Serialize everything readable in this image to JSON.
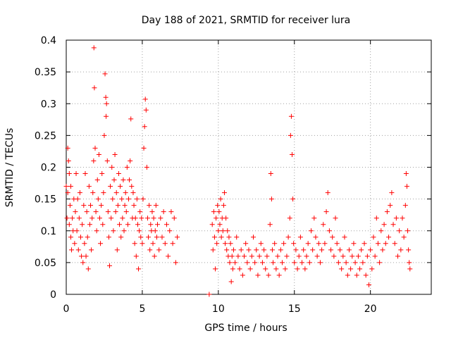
{
  "chart_data": {
    "type": "scatter",
    "title": "Day 188 of 2021, SRMTID for receiver lura",
    "xlabel": "GPS time / hours",
    "ylabel": "SRMTID / TECUs",
    "xlim": [
      0,
      24
    ],
    "ylim": [
      0,
      0.4
    ],
    "x_ticks": [
      0,
      5,
      10,
      15,
      20
    ],
    "y_ticks": [
      0,
      0.05,
      0.1,
      0.15,
      0.2,
      0.25,
      0.3,
      0.35,
      0.4
    ],
    "x_tick_labels": [
      "0",
      "5",
      "10",
      "15",
      "20"
    ],
    "y_tick_labels": [
      "0",
      "0.05",
      "0.1",
      "0.15",
      "0.2",
      "0.25",
      "0.3",
      "0.35",
      "0.4"
    ],
    "grid": true,
    "marker": "+",
    "marker_color": "#ff0000",
    "series": [
      {
        "name": "SRMTID",
        "points": [
          [
            0.0,
            0.17
          ],
          [
            0.05,
            0.12
          ],
          [
            0.1,
            0.23
          ],
          [
            0.1,
            0.16
          ],
          [
            0.15,
            0.21
          ],
          [
            0.2,
            0.11
          ],
          [
            0.2,
            0.19
          ],
          [
            0.25,
            0.14
          ],
          [
            0.3,
            0.09
          ],
          [
            0.3,
            0.17
          ],
          [
            0.35,
            0.07
          ],
          [
            0.4,
            0.12
          ],
          [
            0.45,
            0.1
          ],
          [
            0.5,
            0.15
          ],
          [
            0.55,
            0.08
          ],
          [
            0.6,
            0.13
          ],
          [
            0.65,
            0.19
          ],
          [
            0.7,
            0.1
          ],
          [
            0.75,
            0.15
          ],
          [
            0.8,
            0.07
          ],
          [
            0.85,
            0.12
          ],
          [
            0.9,
            0.16
          ],
          [
            0.95,
            0.09
          ],
          [
            1.0,
            0.06
          ],
          [
            1.05,
            0.11
          ],
          [
            1.1,
            0.05
          ],
          [
            1.15,
            0.14
          ],
          [
            1.2,
            0.08
          ],
          [
            1.25,
            0.19
          ],
          [
            1.3,
            0.06
          ],
          [
            1.35,
            0.13
          ],
          [
            1.4,
            0.09
          ],
          [
            1.45,
            0.04
          ],
          [
            1.5,
            0.17
          ],
          [
            1.55,
            0.11
          ],
          [
            1.6,
            0.14
          ],
          [
            1.65,
            0.07
          ],
          [
            1.7,
            0.12
          ],
          [
            1.75,
            0.16
          ],
          [
            1.8,
            0.21
          ],
          [
            1.82,
            0.388
          ],
          [
            1.85,
            0.325
          ],
          [
            1.9,
            0.23
          ],
          [
            1.95,
            0.13
          ],
          [
            2.0,
            0.1
          ],
          [
            2.05,
            0.18
          ],
          [
            2.1,
            0.15
          ],
          [
            2.15,
            0.22
          ],
          [
            2.2,
            0.12
          ],
          [
            2.25,
            0.08
          ],
          [
            2.3,
            0.14
          ],
          [
            2.35,
            0.19
          ],
          [
            2.4,
            0.11
          ],
          [
            2.45,
            0.16
          ],
          [
            2.5,
            0.25
          ],
          [
            2.55,
            0.347
          ],
          [
            2.6,
            0.31
          ],
          [
            2.62,
            0.28
          ],
          [
            2.65,
            0.3
          ],
          [
            2.7,
            0.21
          ],
          [
            2.75,
            0.13
          ],
          [
            2.8,
            0.09
          ],
          [
            2.85,
            0.045
          ],
          [
            2.9,
            0.17
          ],
          [
            2.95,
            0.12
          ],
          [
            3.0,
            0.2
          ],
          [
            3.05,
            0.15
          ],
          [
            3.1,
            0.1
          ],
          [
            3.15,
            0.18
          ],
          [
            3.2,
            0.22
          ],
          [
            3.25,
            0.13
          ],
          [
            3.3,
            0.16
          ],
          [
            3.35,
            0.07
          ],
          [
            3.4,
            0.14
          ],
          [
            3.45,
            0.19
          ],
          [
            3.5,
            0.11
          ],
          [
            3.55,
            0.17
          ],
          [
            3.6,
            0.09
          ],
          [
            3.65,
            0.15
          ],
          [
            3.7,
            0.12
          ],
          [
            3.75,
            0.18
          ],
          [
            3.8,
            0.1
          ],
          [
            3.85,
            0.14
          ],
          [
            3.9,
            0.16
          ],
          [
            3.95,
            0.13
          ],
          [
            4.0,
            0.2
          ],
          [
            4.05,
            0.11
          ],
          [
            4.1,
            0.15
          ],
          [
            4.15,
            0.18
          ],
          [
            4.2,
            0.21
          ],
          [
            4.25,
            0.276
          ],
          [
            4.3,
            0.17
          ],
          [
            4.35,
            0.12
          ],
          [
            4.4,
            0.16
          ],
          [
            4.45,
            0.14
          ],
          [
            4.5,
            0.08
          ],
          [
            4.55,
            0.12
          ],
          [
            4.6,
            0.06
          ],
          [
            4.65,
            0.15
          ],
          [
            4.7,
            0.11
          ],
          [
            4.75,
            0.04
          ],
          [
            4.8,
            0.1
          ],
          [
            4.85,
            0.13
          ],
          [
            4.9,
            0.09
          ],
          [
            4.95,
            0.12
          ],
          [
            5.0,
            0.08
          ],
          [
            5.05,
            0.15
          ],
          [
            5.1,
            0.23
          ],
          [
            5.15,
            0.264
          ],
          [
            5.2,
            0.307
          ],
          [
            5.25,
            0.29
          ],
          [
            5.3,
            0.2
          ],
          [
            5.35,
            0.12
          ],
          [
            5.4,
            0.09
          ],
          [
            5.45,
            0.14
          ],
          [
            5.5,
            0.07
          ],
          [
            5.55,
            0.11
          ],
          [
            5.6,
            0.1
          ],
          [
            5.65,
            0.13
          ],
          [
            5.7,
            0.08
          ],
          [
            5.75,
            0.12
          ],
          [
            5.8,
            0.06
          ],
          [
            5.85,
            0.1
          ],
          [
            5.9,
            0.14
          ],
          [
            5.95,
            0.09
          ],
          [
            6.0,
            0.11
          ],
          [
            6.1,
            0.07
          ],
          [
            6.2,
            0.12
          ],
          [
            6.3,
            0.09
          ],
          [
            6.4,
            0.13
          ],
          [
            6.5,
            0.08
          ],
          [
            6.6,
            0.11
          ],
          [
            6.7,
            0.06
          ],
          [
            6.8,
            0.1
          ],
          [
            6.9,
            0.13
          ],
          [
            7.0,
            0.08
          ],
          [
            7.1,
            0.12
          ],
          [
            7.2,
            0.05
          ],
          [
            7.3,
            0.09
          ],
          [
            9.4,
            0.0
          ],
          [
            9.6,
            0.11
          ],
          [
            9.65,
            0.07
          ],
          [
            9.7,
            0.13
          ],
          [
            9.75,
            0.09
          ],
          [
            9.8,
            0.04
          ],
          [
            9.85,
            0.12
          ],
          [
            9.9,
            0.08
          ],
          [
            9.95,
            0.14
          ],
          [
            10.0,
            0.1
          ],
          [
            10.05,
            0.13
          ],
          [
            10.1,
            0.11
          ],
          [
            10.15,
            0.15
          ],
          [
            10.2,
            0.09
          ],
          [
            10.25,
            0.12
          ],
          [
            10.3,
            0.1
          ],
          [
            10.35,
            0.14
          ],
          [
            10.4,
            0.16
          ],
          [
            10.45,
            0.08
          ],
          [
            10.5,
            0.12
          ],
          [
            10.55,
            0.07
          ],
          [
            10.6,
            0.1
          ],
          [
            10.65,
            0.06
          ],
          [
            10.7,
            0.09
          ],
          [
            10.75,
            0.05
          ],
          [
            10.8,
            0.08
          ],
          [
            10.85,
            0.02
          ],
          [
            10.9,
            0.06
          ],
          [
            10.95,
            0.04
          ],
          [
            11.0,
            0.07
          ],
          [
            11.1,
            0.05
          ],
          [
            11.2,
            0.09
          ],
          [
            11.3,
            0.06
          ],
          [
            11.4,
            0.04
          ],
          [
            11.5,
            0.07
          ],
          [
            11.6,
            0.03
          ],
          [
            11.7,
            0.06
          ],
          [
            11.8,
            0.08
          ],
          [
            11.9,
            0.05
          ],
          [
            12.0,
            0.07
          ],
          [
            12.1,
            0.04
          ],
          [
            12.2,
            0.06
          ],
          [
            12.3,
            0.09
          ],
          [
            12.4,
            0.05
          ],
          [
            12.5,
            0.07
          ],
          [
            12.6,
            0.03
          ],
          [
            12.7,
            0.06
          ],
          [
            12.8,
            0.08
          ],
          [
            12.9,
            0.05
          ],
          [
            13.0,
            0.07
          ],
          [
            13.1,
            0.04
          ],
          [
            13.2,
            0.06
          ],
          [
            13.3,
            0.03
          ],
          [
            13.4,
            0.11
          ],
          [
            13.45,
            0.19
          ],
          [
            13.5,
            0.15
          ],
          [
            13.55,
            0.07
          ],
          [
            13.6,
            0.05
          ],
          [
            13.7,
            0.08
          ],
          [
            13.8,
            0.04
          ],
          [
            13.9,
            0.06
          ],
          [
            14.0,
            0.03
          ],
          [
            14.1,
            0.07
          ],
          [
            14.2,
            0.05
          ],
          [
            14.3,
            0.08
          ],
          [
            14.4,
            0.04
          ],
          [
            14.5,
            0.06
          ],
          [
            14.6,
            0.09
          ],
          [
            14.7,
            0.12
          ],
          [
            14.75,
            0.25
          ],
          [
            14.8,
            0.28
          ],
          [
            14.85,
            0.22
          ],
          [
            14.9,
            0.15
          ],
          [
            14.95,
            0.08
          ],
          [
            15.0,
            0.05
          ],
          [
            15.1,
            0.07
          ],
          [
            15.2,
            0.04
          ],
          [
            15.3,
            0.06
          ],
          [
            15.4,
            0.09
          ],
          [
            15.5,
            0.05
          ],
          [
            15.6,
            0.07
          ],
          [
            15.7,
            0.04
          ],
          [
            15.8,
            0.06
          ],
          [
            15.9,
            0.08
          ],
          [
            16.0,
            0.05
          ],
          [
            16.1,
            0.1
          ],
          [
            16.2,
            0.07
          ],
          [
            16.3,
            0.12
          ],
          [
            16.4,
            0.09
          ],
          [
            16.5,
            0.06
          ],
          [
            16.6,
            0.08
          ],
          [
            16.7,
            0.05
          ],
          [
            16.8,
            0.07
          ],
          [
            16.9,
            0.11
          ],
          [
            17.0,
            0.08
          ],
          [
            17.1,
            0.13
          ],
          [
            17.2,
            0.16
          ],
          [
            17.3,
            0.1
          ],
          [
            17.4,
            0.07
          ],
          [
            17.5,
            0.09
          ],
          [
            17.6,
            0.06
          ],
          [
            17.7,
            0.12
          ],
          [
            17.8,
            0.08
          ],
          [
            17.9,
            0.05
          ],
          [
            18.0,
            0.07
          ],
          [
            18.1,
            0.04
          ],
          [
            18.2,
            0.06
          ],
          [
            18.3,
            0.09
          ],
          [
            18.4,
            0.05
          ],
          [
            18.5,
            0.03
          ],
          [
            18.6,
            0.07
          ],
          [
            18.7,
            0.04
          ],
          [
            18.8,
            0.06
          ],
          [
            18.9,
            0.08
          ],
          [
            19.0,
            0.05
          ],
          [
            19.1,
            0.03
          ],
          [
            19.2,
            0.06
          ],
          [
            19.3,
            0.04
          ],
          [
            19.4,
            0.07
          ],
          [
            19.5,
            0.05
          ],
          [
            19.6,
            0.08
          ],
          [
            19.7,
            0.03
          ],
          [
            19.8,
            0.06
          ],
          [
            19.9,
            0.015
          ],
          [
            20.0,
            0.07
          ],
          [
            20.1,
            0.04
          ],
          [
            20.2,
            0.09
          ],
          [
            20.3,
            0.06
          ],
          [
            20.4,
            0.12
          ],
          [
            20.5,
            0.08
          ],
          [
            20.6,
            0.05
          ],
          [
            20.7,
            0.1
          ],
          [
            20.8,
            0.07
          ],
          [
            20.9,
            0.11
          ],
          [
            21.0,
            0.08
          ],
          [
            21.1,
            0.13
          ],
          [
            21.2,
            0.09
          ],
          [
            21.3,
            0.14
          ],
          [
            21.4,
            0.16
          ],
          [
            21.5,
            0.11
          ],
          [
            21.6,
            0.08
          ],
          [
            21.7,
            0.12
          ],
          [
            21.8,
            0.06
          ],
          [
            21.9,
            0.1
          ],
          [
            22.0,
            0.07
          ],
          [
            22.1,
            0.12
          ],
          [
            22.2,
            0.09
          ],
          [
            22.3,
            0.14
          ],
          [
            22.35,
            0.19
          ],
          [
            22.4,
            0.17
          ],
          [
            22.45,
            0.1
          ],
          [
            22.5,
            0.07
          ],
          [
            22.55,
            0.05
          ],
          [
            22.6,
            0.04
          ]
        ]
      }
    ]
  }
}
